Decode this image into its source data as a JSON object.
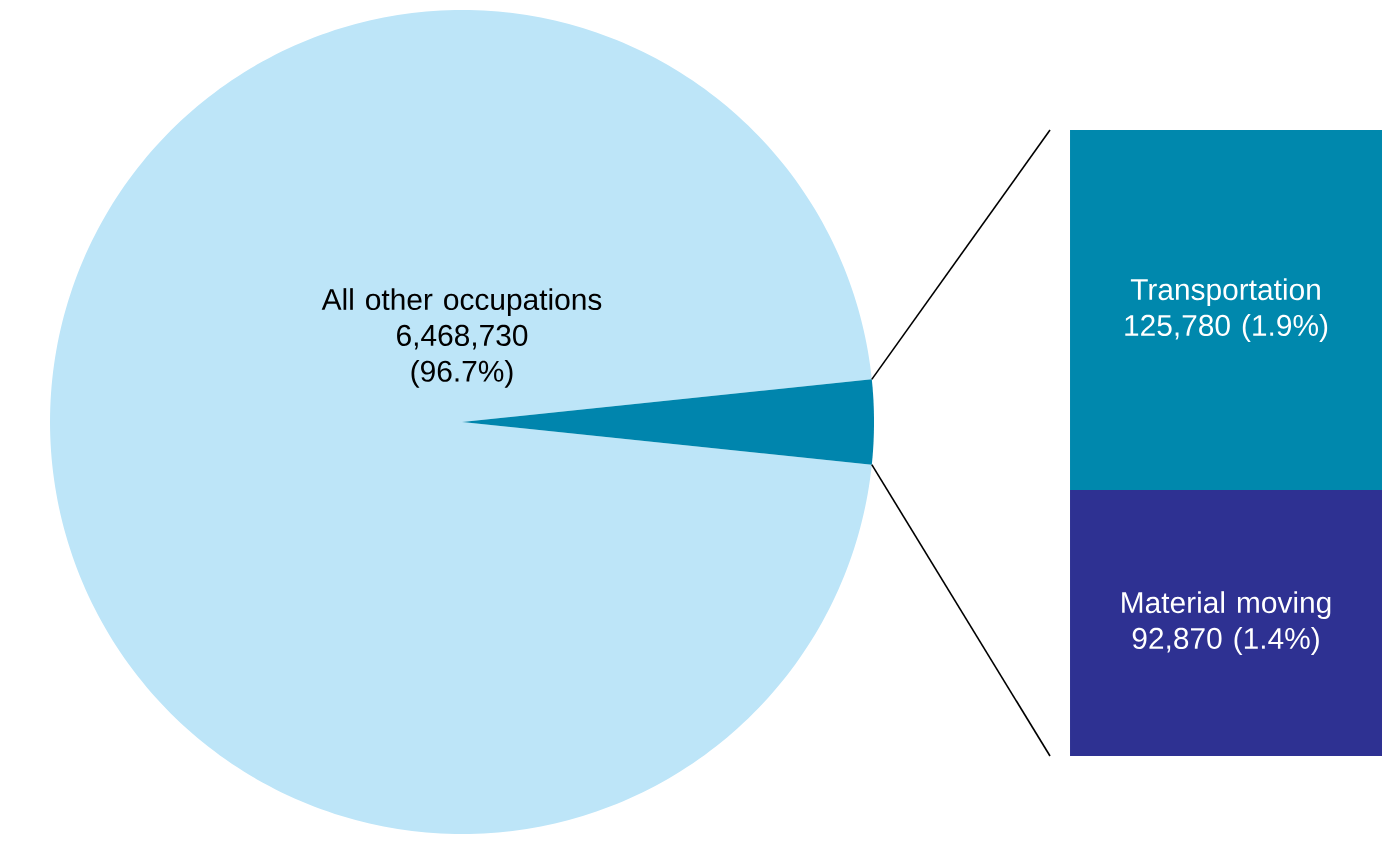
{
  "chart_data": [
    {
      "type": "pie",
      "categories": [
        "All other occupations",
        null
      ],
      "values": [
        96.7,
        3.3
      ],
      "value_labels": [
        "6,468,730 (96.7%)",
        null
      ],
      "colors": [
        "#bde5f8",
        "#0085ad"
      ]
    },
    {
      "type": "bar",
      "stacked": true,
      "categories": [
        null
      ],
      "series": [
        {
          "name": "Material moving",
          "color": "#2e3192",
          "values": [
            92870
          ],
          "value_labels": [
            "92,870 (1.4%)"
          ]
        },
        {
          "name": "Transportation",
          "color": "#0088ad",
          "values": [
            125780
          ],
          "value_labels": [
            "125,780 (1.9%)"
          ]
        }
      ]
    }
  ]
}
